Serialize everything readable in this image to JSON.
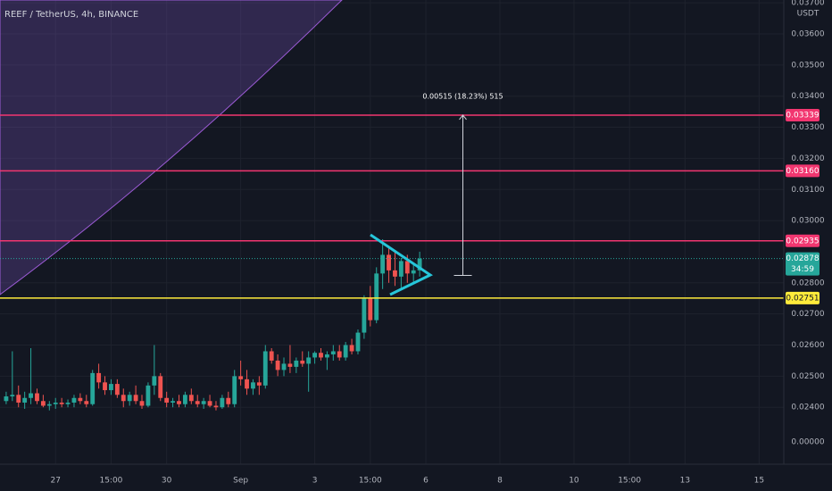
{
  "chart_data": {
    "type": "candlestick",
    "title": "REEF / TetherUS, 4h, BINANCE",
    "currency": "USDT",
    "up_color": "#26a69a",
    "down_color": "#ef5350",
    "grid": true,
    "xlim": [
      -1,
      126
    ],
    "ylim": [
      0.02217,
      0.03709
    ],
    "xticks": [
      {
        "value": 8,
        "label": "27"
      },
      {
        "value": 17,
        "label": "15:00"
      },
      {
        "value": 26,
        "label": "30"
      },
      {
        "value": 38,
        "label": "Sep"
      },
      {
        "value": 50,
        "label": "3"
      },
      {
        "value": 59,
        "label": "15:00"
      },
      {
        "value": 68,
        "label": "6"
      },
      {
        "value": 80,
        "label": "8"
      },
      {
        "value": 92,
        "label": "10"
      },
      {
        "value": 101,
        "label": "15:00"
      },
      {
        "value": 110,
        "label": "13"
      },
      {
        "value": 122,
        "label": "15"
      }
    ],
    "yticks": [
      {
        "value": 0.037,
        "label": "0.03700"
      },
      {
        "value": 0.036,
        "label": "0.03600"
      },
      {
        "value": 0.035,
        "label": "0.03500"
      },
      {
        "value": 0.034,
        "label": "0.03400"
      },
      {
        "value": 0.033,
        "label": "0.03300"
      },
      {
        "value": 0.032,
        "label": "0.03200"
      },
      {
        "value": 0.031,
        "label": "0.03100"
      },
      {
        "value": 0.03,
        "label": "0.03000"
      },
      {
        "value": 0.028,
        "label": "0.02800"
      },
      {
        "value": 0.027,
        "label": "0.02700"
      },
      {
        "value": 0.026,
        "label": "0.02600"
      },
      {
        "value": 0.025,
        "label": "0.02500"
      },
      {
        "value": 0.024,
        "label": "0.02400"
      }
    ],
    "bottom_axis_label": "0.00000",
    "x": [
      0,
      1,
      2,
      3,
      4,
      5,
      6,
      7,
      8,
      9,
      10,
      11,
      12,
      13,
      14,
      15,
      16,
      17,
      18,
      19,
      20,
      21,
      22,
      23,
      24,
      25,
      26,
      27,
      28,
      29,
      30,
      31,
      32,
      33,
      34,
      35,
      36,
      37,
      38,
      39,
      40,
      41,
      42,
      43,
      44,
      45,
      46,
      47,
      48,
      49,
      50,
      51,
      52,
      53,
      54,
      55,
      56,
      57,
      58,
      59,
      60,
      61,
      62,
      63,
      64,
      65,
      66,
      67
    ],
    "open": [
      0.0242,
      0.02435,
      0.0244,
      0.02415,
      0.0243,
      0.02445,
      0.0242,
      0.02405,
      0.0241,
      0.02415,
      0.0241,
      0.02415,
      0.0243,
      0.0242,
      0.0241,
      0.0251,
      0.0248,
      0.02455,
      0.02475,
      0.0244,
      0.0242,
      0.0244,
      0.0242,
      0.02405,
      0.0247,
      0.025,
      0.0243,
      0.02415,
      0.0242,
      0.0241,
      0.0244,
      0.0242,
      0.0241,
      0.0242,
      0.02405,
      0.024,
      0.0243,
      0.0241,
      0.025,
      0.0249,
      0.0246,
      0.0248,
      0.0247,
      0.0258,
      0.0255,
      0.0252,
      0.0254,
      0.0253,
      0.0255,
      0.0254,
      0.0256,
      0.02575,
      0.0256,
      0.0257,
      0.0258,
      0.0256,
      0.026,
      0.0258,
      0.0264,
      0.0275,
      0.0268,
      0.0283,
      0.0289,
      0.0284,
      0.0282,
      0.0287,
      0.0283,
      0.0284
    ],
    "high": [
      0.0245,
      0.0258,
      0.0247,
      0.0245,
      0.0259,
      0.0246,
      0.0244,
      0.0242,
      0.0243,
      0.0243,
      0.02425,
      0.0244,
      0.02445,
      0.0244,
      0.0252,
      0.0254,
      0.025,
      0.0249,
      0.0249,
      0.0246,
      0.0245,
      0.0247,
      0.0244,
      0.0248,
      0.026,
      0.0251,
      0.0245,
      0.0243,
      0.0244,
      0.0245,
      0.0246,
      0.0244,
      0.0243,
      0.0244,
      0.0242,
      0.0244,
      0.0245,
      0.0252,
      0.0255,
      0.0252,
      0.0249,
      0.025,
      0.026,
      0.0259,
      0.0257,
      0.0256,
      0.026,
      0.0256,
      0.0258,
      0.0258,
      0.0258,
      0.0259,
      0.0258,
      0.026,
      0.026,
      0.0261,
      0.0262,
      0.0265,
      0.0276,
      0.0279,
      0.0285,
      0.0294,
      0.0292,
      0.029,
      0.0288,
      0.0289,
      0.0286,
      0.029
    ],
    "low": [
      0.0241,
      0.0242,
      0.024,
      0.02395,
      0.0241,
      0.0241,
      0.024,
      0.0239,
      0.02395,
      0.024,
      0.024,
      0.024,
      0.0241,
      0.024,
      0.02405,
      0.0246,
      0.0244,
      0.0244,
      0.0243,
      0.024,
      0.02405,
      0.0241,
      0.02395,
      0.024,
      0.0244,
      0.0242,
      0.024,
      0.024,
      0.024,
      0.024,
      0.0241,
      0.024,
      0.02395,
      0.024,
      0.0239,
      0.02395,
      0.024,
      0.024,
      0.0247,
      0.0244,
      0.0244,
      0.0244,
      0.0246,
      0.0254,
      0.025,
      0.025,
      0.0251,
      0.0251,
      0.0253,
      0.0245,
      0.0254,
      0.0255,
      0.0252,
      0.0255,
      0.0255,
      0.0255,
      0.0257,
      0.0257,
      0.0262,
      0.0266,
      0.0267,
      0.0278,
      0.028,
      0.0279,
      0.0278,
      0.028,
      0.028,
      0.0282
    ],
    "close": [
      0.02435,
      0.0244,
      0.02415,
      0.0243,
      0.02445,
      0.0242,
      0.02405,
      0.0241,
      0.02415,
      0.0241,
      0.02415,
      0.0243,
      0.0242,
      0.0241,
      0.0251,
      0.0248,
      0.02455,
      0.02475,
      0.0244,
      0.0242,
      0.0244,
      0.0242,
      0.02405,
      0.0247,
      0.025,
      0.0243,
      0.02415,
      0.0242,
      0.0241,
      0.0244,
      0.0242,
      0.0241,
      0.0242,
      0.02405,
      0.024,
      0.0243,
      0.0241,
      0.025,
      0.0249,
      0.0246,
      0.0248,
      0.0247,
      0.0258,
      0.0255,
      0.0252,
      0.0254,
      0.0253,
      0.0255,
      0.0254,
      0.0256,
      0.02575,
      0.0256,
      0.0257,
      0.0258,
      0.0256,
      0.026,
      0.0258,
      0.0264,
      0.0275,
      0.0268,
      0.0283,
      0.0289,
      0.0284,
      0.0282,
      0.0287,
      0.0283,
      0.0284,
      0.02878
    ],
    "levels": [
      {
        "value": 0.03339,
        "label": "0.03339",
        "color": "#f23670"
      },
      {
        "value": 0.0316,
        "label": "0.03160",
        "color": "#f23670"
      },
      {
        "value": 0.02935,
        "label": "0.02935",
        "color": "#f23670"
      },
      {
        "value": 0.02751,
        "label": "0.02751",
        "color": "#ffeb3b"
      }
    ],
    "current_price": {
      "value": 0.02878,
      "label": "0.02878",
      "countdown": "34:59",
      "color": "#26a69a"
    },
    "measure": {
      "x": 74,
      "from": 0.02824,
      "to": 0.03339,
      "label": "0.00515 (18.23%) 515"
    }
  }
}
